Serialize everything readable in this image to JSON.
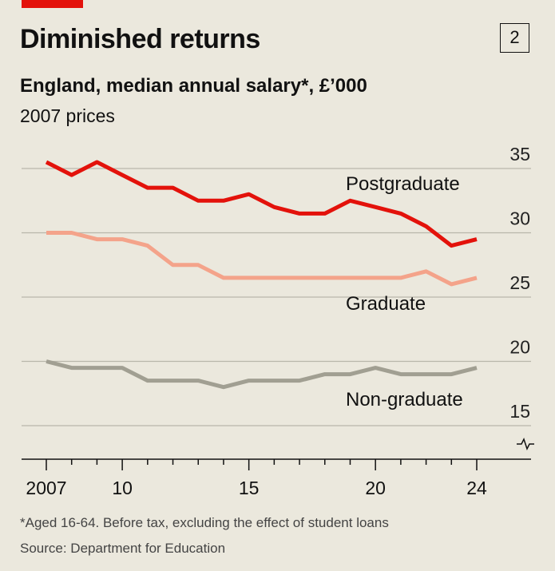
{
  "header": {
    "title": "Diminished returns",
    "chart_number": "2",
    "subtitle": "England, median annual salary*, £’000",
    "units": "2007 prices"
  },
  "footer": {
    "footnote": "*Aged 16-64. Before tax, excluding the effect of student loans",
    "source": "Source: Department for Education"
  },
  "colors": {
    "postgraduate": "#e3120b",
    "graduate": "#f4a38a",
    "non_graduate": "#a19f92",
    "background": "#ebe8dd",
    "accent": "#e3120b"
  },
  "chart_data": {
    "type": "line",
    "title": "Diminished returns",
    "ylabel": "England, median annual salary*, £’000",
    "xlabel": "",
    "x": [
      2007,
      2008,
      2009,
      2010,
      2011,
      2012,
      2013,
      2014,
      2015,
      2016,
      2017,
      2018,
      2019,
      2020,
      2021,
      2022,
      2023,
      2024
    ],
    "ylim": [
      15,
      35
    ],
    "yticks": [
      15,
      20,
      25,
      30,
      35
    ],
    "ytick_labels": [
      "15",
      "20",
      "25",
      "30",
      "35"
    ],
    "xticks": [
      2007,
      2010,
      2015,
      2020,
      2024
    ],
    "xtick_labels": [
      "2007",
      "10",
      "15",
      "20",
      "24"
    ],
    "axis_break": true,
    "series": [
      {
        "name": "Postgraduate",
        "key": "postgraduate",
        "values": [
          35.5,
          34.5,
          35.5,
          34.5,
          33.5,
          33.5,
          32.5,
          32.5,
          33.0,
          32.0,
          31.5,
          31.5,
          32.5,
          32.0,
          31.5,
          30.5,
          29.0,
          29.5
        ]
      },
      {
        "name": "Graduate",
        "key": "graduate",
        "values": [
          30.0,
          30.0,
          29.5,
          29.5,
          29.0,
          27.5,
          27.5,
          26.5,
          26.5,
          26.5,
          26.5,
          26.5,
          26.5,
          26.5,
          26.5,
          27.0,
          26.0,
          26.5
        ]
      },
      {
        "name": "Non-graduate",
        "key": "non_graduate",
        "values": [
          20.0,
          19.5,
          19.5,
          19.5,
          18.5,
          18.5,
          18.5,
          18.0,
          18.5,
          18.5,
          18.5,
          19.0,
          19.0,
          19.5,
          19.0,
          19.0,
          19.0,
          19.5
        ]
      }
    ]
  }
}
